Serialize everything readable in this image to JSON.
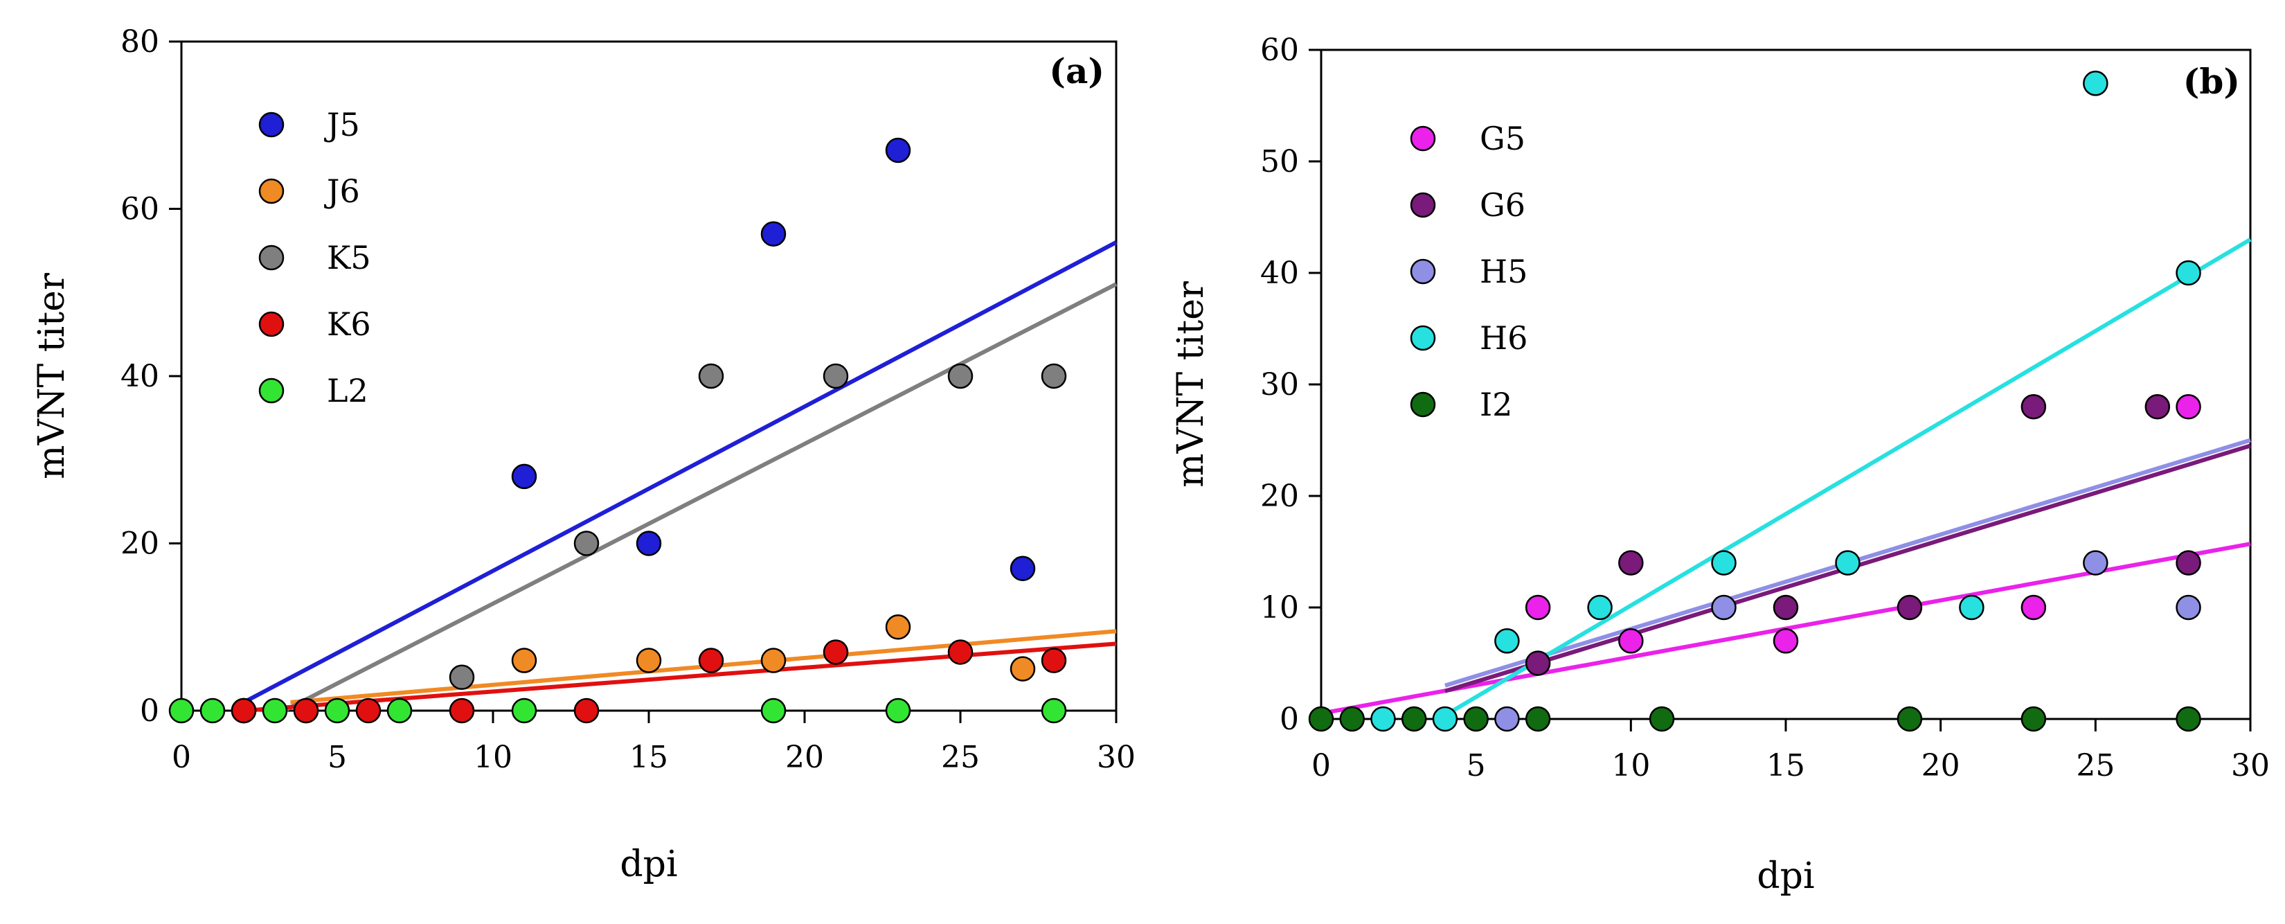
{
  "chart_data": [
    {
      "type": "scatter",
      "panel_label": "(a)",
      "xlabel": "dpi",
      "ylabel": "mVNT titer",
      "xlim": [
        0,
        30
      ],
      "ylim": [
        0,
        80
      ],
      "x_ticks": [
        0,
        5,
        10,
        15,
        20,
        25,
        30
      ],
      "y_ticks": [
        0,
        20,
        40,
        60,
        80
      ],
      "legend_position": "top-left",
      "grid": false,
      "series": [
        {
          "name": "J5",
          "color": "#1f1fd6",
          "x": [
            2,
            11,
            15,
            19,
            23,
            27
          ],
          "y": [
            0,
            28,
            20,
            57,
            67,
            17
          ],
          "trend": {
            "x": [
              2,
              30
            ],
            "y": [
              1,
              56
            ]
          }
        },
        {
          "name": "J6",
          "color": "#f08a24",
          "x": [
            2,
            4,
            11,
            15,
            19,
            23,
            27
          ],
          "y": [
            0,
            0,
            6,
            6,
            6,
            10,
            5
          ],
          "trend": {
            "x": [
              3.5,
              30
            ],
            "y": [
              1,
              9.5
            ]
          }
        },
        {
          "name": "K5",
          "color": "#7f7f7f",
          "x": [
            9,
            13,
            17,
            21,
            25,
            28
          ],
          "y": [
            4,
            20,
            40,
            40,
            40,
            40
          ],
          "trend": {
            "x": [
              3.3,
              30
            ],
            "y": [
              0,
              51
            ]
          }
        },
        {
          "name": "K6",
          "color": "#e01010",
          "x": [
            2,
            4,
            6,
            9,
            13,
            17,
            21,
            25,
            28
          ],
          "y": [
            0,
            0,
            0,
            0,
            0,
            6,
            7,
            7,
            6
          ],
          "trend": {
            "x": [
              2,
              30
            ],
            "y": [
              0,
              8
            ]
          }
        },
        {
          "name": "L2",
          "color": "#33e533",
          "x": [
            0,
            1,
            3,
            5,
            7,
            11,
            19,
            23,
            28
          ],
          "y": [
            0,
            0,
            0,
            0,
            0,
            0,
            0,
            0,
            0
          ]
        }
      ]
    },
    {
      "type": "scatter",
      "panel_label": "(b)",
      "xlabel": "dpi",
      "ylabel": "mVNT titer",
      "xlim": [
        0,
        30
      ],
      "ylim": [
        0,
        60
      ],
      "x_ticks": [
        0,
        5,
        10,
        15,
        20,
        25,
        30
      ],
      "y_ticks": [
        0,
        10,
        20,
        30,
        40,
        50,
        60
      ],
      "legend_position": "top-left",
      "grid": false,
      "series": [
        {
          "name": "G5",
          "color": "#ea22ea",
          "x": [
            7,
            10,
            15,
            23,
            28
          ],
          "y": [
            10,
            7,
            7,
            10,
            28
          ],
          "trend": {
            "x": [
              0,
              30
            ],
            "y": [
              0.5,
              15.7
            ]
          }
        },
        {
          "name": "G6",
          "color": "#7a1a7a",
          "x": [
            7,
            10,
            15,
            19,
            23,
            27,
            28
          ],
          "y": [
            5,
            14,
            10,
            10,
            28,
            28,
            14
          ],
          "trend": {
            "x": [
              4,
              30
            ],
            "y": [
              2.5,
              24.5
            ]
          }
        },
        {
          "name": "H5",
          "color": "#8f8fe6",
          "x": [
            6,
            13,
            25,
            28
          ],
          "y": [
            0,
            10,
            14,
            10
          ],
          "trend": {
            "x": [
              4,
              30
            ],
            "y": [
              3,
              25
            ]
          }
        },
        {
          "name": "H6",
          "color": "#27e0e0",
          "x": [
            2,
            4,
            6,
            9,
            13,
            17,
            21,
            25,
            28
          ],
          "y": [
            0,
            0,
            7,
            10,
            14,
            14,
            10,
            57,
            40
          ],
          "trend": {
            "x": [
              3.8,
              30
            ],
            "y": [
              0,
              43
            ]
          }
        },
        {
          "name": "I2",
          "color": "#116b11",
          "x": [
            0,
            1,
            3,
            5,
            7,
            11,
            19,
            23,
            28
          ],
          "y": [
            0,
            0,
            0,
            0,
            0,
            0,
            0,
            0,
            0
          ]
        }
      ]
    }
  ]
}
